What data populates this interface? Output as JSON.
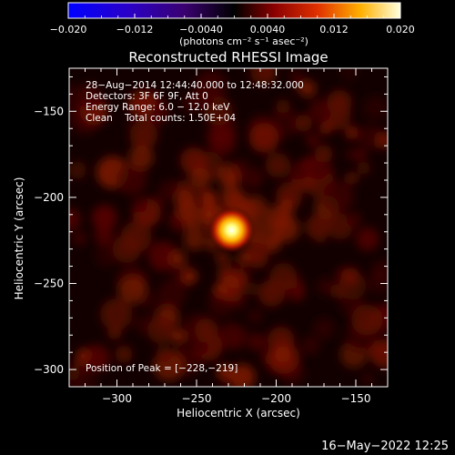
{
  "colorbar": {
    "tick_labels": [
      "−0.020",
      "−0.012",
      "−0.0040",
      "0.0040",
      "0.012",
      "0.020"
    ],
    "range": [
      -0.02,
      0.02
    ],
    "units_label": "(photons cm⁻² s⁻¹ asec⁻²)"
  },
  "title": "Reconstructed RHESSI Image",
  "info_lines": [
    "28−Aug−2014 12:44:40.000 to 12:48:32.000",
    "Detectors: 3F 6F 9F, Att 0",
    "Energy Range: 6.0 − 12.0 keV",
    "Clean    Total counts: 1.50E+04"
  ],
  "peak_label": "Position of Peak = [−228,−219]",
  "axes": {
    "xlabel": "Heliocentric X (arcsec)",
    "ylabel": "Heliocentric Y (arcsec)",
    "x_range": [
      -330,
      -130
    ],
    "y_range": [
      -310,
      -125
    ],
    "x_ticks": [
      -300,
      -250,
      -200,
      -150
    ],
    "y_ticks": [
      -150,
      -200,
      -250,
      -300
    ],
    "x_tick_labels": [
      "−300",
      "−250",
      "−200",
      "−150"
    ],
    "y_tick_labels": [
      "−150",
      "−200",
      "−250",
      "−300"
    ]
  },
  "peak": {
    "x": -228,
    "y": -219
  },
  "timestamp": "16−May−2022 12:25"
}
